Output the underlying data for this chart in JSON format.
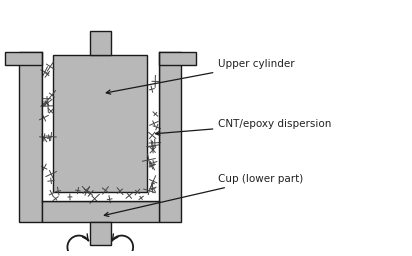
{
  "fig_width": 4.12,
  "fig_height": 2.56,
  "dpi": 100,
  "bg_color": "#ffffff",
  "gray_fill": "#b8b8b8",
  "dark_outline": "#1a1a1a",
  "labels": {
    "upper_cylinder": "Upper cylinder",
    "cnt_epoxy": "CNT/epoxy dispersion",
    "cup": "Cup (lower part)"
  },
  "label_fontsize": 7.5,
  "label_color": "#222222",
  "xlim": [
    0,
    10
  ],
  "ylim": [
    0,
    6.0
  ]
}
